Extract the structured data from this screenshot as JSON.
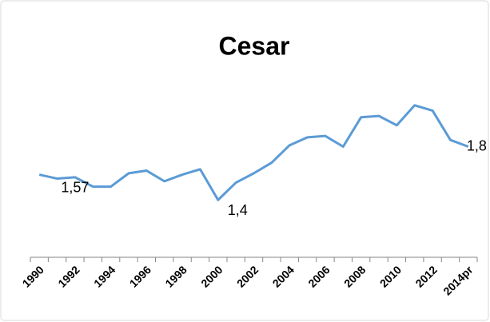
{
  "chart_data": {
    "type": "line",
    "title": "Cesar",
    "categories": [
      "1990",
      null,
      "1992",
      null,
      "1994",
      null,
      "1996",
      null,
      "1998",
      null,
      "2000",
      null,
      "2002",
      null,
      "2004",
      null,
      "2006",
      null,
      "2008",
      null,
      "2010",
      null,
      "2012",
      null,
      "2014pr"
    ],
    "values": [
      1.59,
      1.56,
      1.57,
      1.5,
      1.5,
      1.6,
      1.62,
      1.54,
      1.59,
      1.63,
      1.4,
      1.53,
      1.6,
      1.68,
      1.81,
      1.87,
      1.88,
      1.8,
      2.02,
      2.03,
      1.96,
      2.11,
      2.07,
      1.85,
      1.8
    ],
    "value_labels": [
      null,
      null,
      "1,57",
      null,
      null,
      null,
      null,
      null,
      null,
      null,
      "1,4",
      null,
      null,
      null,
      null,
      null,
      null,
      null,
      null,
      null,
      null,
      null,
      null,
      null,
      "1,8"
    ],
    "color": "#5b9bd5",
    "ylim": [
      0.97,
      2.72
    ]
  }
}
